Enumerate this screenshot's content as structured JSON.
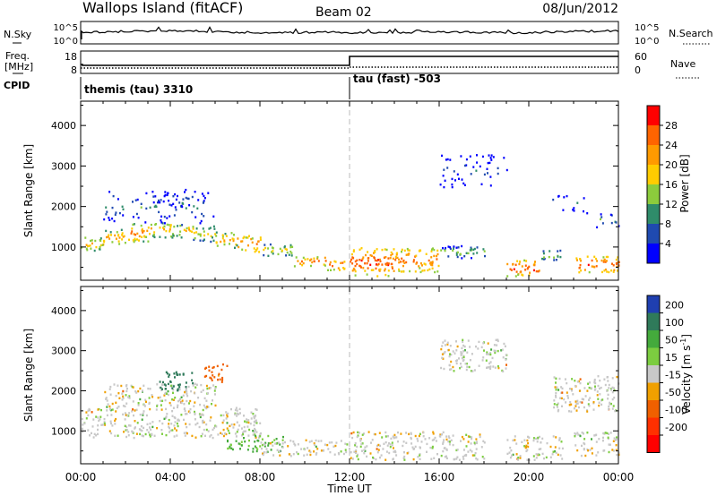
{
  "header": {
    "site": "Wallops Island (fitACF)",
    "beam": "Beam 02",
    "date": "08/Jun/2012"
  },
  "nsky_panel": {
    "left_label": "N.Sky",
    "right_label": "N.Search",
    "ticks_left": [
      "10^5",
      "10^0"
    ],
    "ticks_right": [
      "10^5",
      "10^0"
    ]
  },
  "freq_panel": {
    "left_label_1": "Freq.",
    "left_label_2": "[MHz]",
    "right_label": "Nave",
    "ticks_left": [
      "18",
      "8"
    ],
    "ticks_right": [
      "60",
      "0"
    ]
  },
  "cpid": {
    "label": "CPID",
    "modes": [
      {
        "name": "themis (tau) 3310",
        "start_hour": 0
      },
      {
        "name": "tau (fast) -503",
        "start_hour": 12
      }
    ]
  },
  "time_axis": {
    "xlabel": "Time UT",
    "ticks": [
      "00:00",
      "04:00",
      "08:00",
      "12:00",
      "16:00",
      "20:00",
      "00:00"
    ]
  },
  "power_colorbar": {
    "label": "Power [dB]",
    "ticks": [
      "28",
      "24",
      "20",
      "16",
      "12",
      "8",
      "4"
    ],
    "colors": [
      "#ff0000",
      "#ff6400",
      "#ff9a00",
      "#ffcc00",
      "#8ccc3c",
      "#2f8c6a",
      "#1f4ab0",
      "#0000ff"
    ]
  },
  "velocity_colorbar": {
    "label": "Velocity [m s^-1]",
    "ticks": [
      "200",
      "100",
      "50",
      "15",
      "-15",
      "-50",
      "-100",
      "-200"
    ],
    "colors": [
      "#1f3fb0",
      "#2f7a5a",
      "#44aa3c",
      "#7ccd40",
      "#c8c8c8",
      "#f0a000",
      "#f06000",
      "#ff3000",
      "#ff0000"
    ]
  },
  "chart_data": {
    "type": "heatmap",
    "xlabel": "Time UT",
    "ylabel": "Slant Range [km]",
    "xlim": [
      0,
      24
    ],
    "ylim": [
      180,
      4600
    ],
    "y_ticks": [
      1000,
      2000,
      3000,
      4000
    ],
    "power_bands": [
      {
        "t0": 0,
        "t1": 1,
        "r0": 900,
        "r1": 1300,
        "power": 20
      },
      {
        "t0": 1,
        "t1": 2,
        "r0": 1050,
        "r1": 1450,
        "power": 22
      },
      {
        "t0": 2,
        "t1": 3,
        "r0": 1150,
        "r1": 1600,
        "power": 24
      },
      {
        "t0": 3,
        "t1": 4,
        "r0": 1250,
        "r1": 1650,
        "power": 22
      },
      {
        "t0": 4,
        "t1": 5,
        "r0": 1250,
        "r1": 1600,
        "power": 20
      },
      {
        "t0": 5,
        "t1": 6,
        "r0": 1150,
        "r1": 1550,
        "power": 18
      },
      {
        "t0": 6,
        "t1": 7,
        "r0": 1000,
        "r1": 1400,
        "power": 22
      },
      {
        "t0": 7,
        "t1": 8,
        "r0": 900,
        "r1": 1300,
        "power": 26
      },
      {
        "t0": 8,
        "t1": 9.5,
        "r0": 800,
        "r1": 1100,
        "power": 18
      },
      {
        "t0": 9.5,
        "t1": 11,
        "r0": 550,
        "r1": 800,
        "power": 26
      },
      {
        "t0": 11,
        "t1": 12,
        "r0": 450,
        "r1": 700,
        "power": 28
      },
      {
        "t0": 12,
        "t1": 14,
        "r0": 300,
        "r1": 1000,
        "power": 28
      },
      {
        "t0": 14,
        "t1": 16,
        "r0": 400,
        "r1": 1000,
        "power": 26
      },
      {
        "t0": 16,
        "t1": 18,
        "r0": 750,
        "r1": 1050,
        "power": 14
      },
      {
        "t0": 19,
        "t1": 20.5,
        "r0": 300,
        "r1": 700,
        "power": 28
      },
      {
        "t0": 20.5,
        "t1": 21.5,
        "r0": 700,
        "r1": 950,
        "power": 18
      },
      {
        "t0": 22,
        "t1": 24,
        "r0": 400,
        "r1": 800,
        "power": 28
      },
      {
        "t0": 1,
        "t1": 6,
        "r0": 1600,
        "r1": 2400,
        "power": 10
      },
      {
        "t0": 3,
        "t1": 5,
        "r0": 2000,
        "r1": 2500,
        "power": 6
      },
      {
        "t0": 16,
        "t1": 19,
        "r0": 2500,
        "r1": 3300,
        "power": 6
      },
      {
        "t0": 21,
        "t1": 22.5,
        "r0": 1900,
        "r1": 2300,
        "power": 10
      },
      {
        "t0": 22.5,
        "t1": 24,
        "r0": 1500,
        "r1": 1900,
        "power": 12
      }
    ],
    "velocity_bands": [
      {
        "t0": 0,
        "t1": 8,
        "r0": 850,
        "r1": 1600,
        "velocity": 0
      },
      {
        "t0": 1,
        "t1": 6,
        "r0": 1600,
        "r1": 2200,
        "velocity": 0
      },
      {
        "t0": 6.5,
        "t1": 9,
        "r0": 500,
        "r1": 900,
        "velocity": 60
      },
      {
        "t0": 8,
        "t1": 12,
        "r0": 400,
        "r1": 800,
        "velocity": 0
      },
      {
        "t0": 12,
        "t1": 18,
        "r0": 300,
        "r1": 1000,
        "velocity": 0
      },
      {
        "t0": 19,
        "t1": 21.5,
        "r0": 300,
        "r1": 900,
        "velocity": 0
      },
      {
        "t0": 22,
        "t1": 24,
        "r0": 400,
        "r1": 1000,
        "velocity": 0
      },
      {
        "t0": 16,
        "t1": 19,
        "r0": 2500,
        "r1": 3300,
        "velocity": 0
      },
      {
        "t0": 21,
        "t1": 24,
        "r0": 1500,
        "r1": 2400,
        "velocity": 0
      },
      {
        "t0": 3.5,
        "t1": 5,
        "r0": 2000,
        "r1": 2500,
        "velocity": 150
      },
      {
        "t0": 5.5,
        "t1": 6.5,
        "r0": 2200,
        "r1": 2700,
        "velocity": -80
      }
    ]
  }
}
